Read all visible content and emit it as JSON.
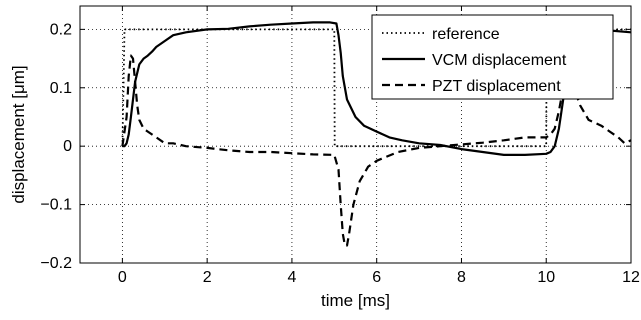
{
  "chart_data": {
    "type": "line",
    "title": "",
    "xlabel": "time [ms]",
    "ylabel": "displacement [μm]",
    "xlim": [
      -1,
      12
    ],
    "ylim": [
      -0.2,
      0.24
    ],
    "xticks": [
      0,
      2,
      4,
      6,
      8,
      10,
      12
    ],
    "yticks": [
      -0.2,
      -0.1,
      0,
      0.1,
      0.2
    ],
    "xtick_labels": [
      "0",
      "2",
      "4",
      "6",
      "8",
      "10",
      "12"
    ],
    "ytick_labels": [
      "−0.2",
      "−0.1",
      "0",
      "0.1",
      "0.2"
    ],
    "grid": true,
    "legend_position": "top-right",
    "series": [
      {
        "name": "reference",
        "style": "dotted",
        "x": [
          0,
          0.05,
          5.0,
          5.01,
          10.0,
          10.01,
          12
        ],
        "y": [
          0,
          0.2,
          0.2,
          0,
          0,
          0.2,
          0.2
        ]
      },
      {
        "name": "VCM displacement",
        "style": "solid",
        "x": [
          0,
          0.05,
          0.1,
          0.15,
          0.2,
          0.25,
          0.3,
          0.4,
          0.5,
          0.6,
          0.7,
          0.8,
          1.0,
          1.2,
          1.5,
          2.0,
          2.5,
          3.0,
          3.5,
          4.0,
          4.5,
          4.9,
          5.05,
          5.1,
          5.15,
          5.2,
          5.3,
          5.5,
          5.7,
          6.0,
          6.3,
          6.6,
          7.0,
          7.5,
          8.0,
          8.5,
          9.0,
          9.5,
          10.0,
          10.1,
          10.2,
          10.3,
          10.4,
          10.5,
          10.6,
          10.8,
          11.0,
          11.5,
          12.0
        ],
        "y": [
          0,
          0,
          0.005,
          0.02,
          0.05,
          0.08,
          0.11,
          0.14,
          0.15,
          0.155,
          0.162,
          0.17,
          0.18,
          0.19,
          0.195,
          0.2,
          0.201,
          0.205,
          0.208,
          0.21,
          0.212,
          0.212,
          0.21,
          0.19,
          0.16,
          0.12,
          0.08,
          0.05,
          0.035,
          0.025,
          0.015,
          0.01,
          0.005,
          0.002,
          -0.005,
          -0.01,
          -0.015,
          -0.015,
          -0.013,
          -0.01,
          0.0,
          0.03,
          0.08,
          0.12,
          0.16,
          0.19,
          0.2,
          0.198,
          0.195
        ]
      },
      {
        "name": "PZT displacement",
        "style": "dashed",
        "x": [
          0,
          0.1,
          0.15,
          0.2,
          0.25,
          0.3,
          0.35,
          0.4,
          0.5,
          0.6,
          0.7,
          0.8,
          1.0,
          1.2,
          1.5,
          2.0,
          2.5,
          3.0,
          3.5,
          4.0,
          4.5,
          5.0,
          5.1,
          5.15,
          5.2,
          5.25,
          5.3,
          5.35,
          5.45,
          5.6,
          5.8,
          6.0,
          6.5,
          7.0,
          7.5,
          8.0,
          8.5,
          9.0,
          9.5,
          10.0,
          10.1,
          10.2,
          10.3,
          10.4,
          10.5,
          10.6,
          10.8,
          11.0,
          11.3,
          11.5,
          11.7,
          11.85,
          12.0
        ],
        "y": [
          0,
          0.05,
          0.12,
          0.155,
          0.15,
          0.11,
          0.07,
          0.045,
          0.03,
          0.025,
          0.02,
          0.015,
          0.005,
          0.005,
          0.0,
          -0.003,
          -0.007,
          -0.01,
          -0.01,
          -0.012,
          -0.014,
          -0.015,
          -0.04,
          -0.1,
          -0.15,
          -0.17,
          -0.17,
          -0.15,
          -0.1,
          -0.06,
          -0.035,
          -0.025,
          -0.01,
          -0.003,
          0.0,
          0.003,
          0.006,
          0.01,
          0.015,
          0.015,
          0.02,
          0.03,
          0.06,
          0.1,
          0.12,
          0.11,
          0.07,
          0.045,
          0.035,
          0.025,
          0.015,
          0.005,
          0.01
        ]
      }
    ]
  }
}
